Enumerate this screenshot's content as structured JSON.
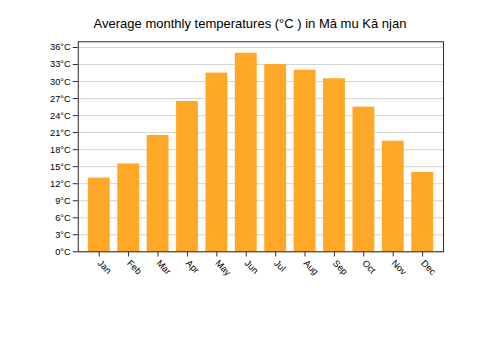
{
  "chart_data": {
    "type": "bar",
    "title": "Average monthly temperatures (°C ) in Mā mu Kā njan",
    "categories": [
      "Jan",
      "Feb",
      "Mar",
      "Apr",
      "May",
      "Jun",
      "Jul",
      "Aug",
      "Sep",
      "Oct",
      "Nov",
      "Dec"
    ],
    "values": [
      13,
      15.5,
      20.5,
      26.5,
      31.5,
      35,
      33,
      32,
      30.5,
      25.5,
      19.5,
      14
    ],
    "color": "#FFA726",
    "ylim": [
      0,
      37
    ],
    "yticks": [
      {
        "value": 0,
        "label": "0°C"
      },
      {
        "value": 3,
        "label": "3°C"
      },
      {
        "value": 6,
        "label": "6°C"
      },
      {
        "value": 9,
        "label": "9°C"
      },
      {
        "value": 12,
        "label": "12°C"
      },
      {
        "value": 15,
        "label": "15°C"
      },
      {
        "value": 18,
        "label": "18°C"
      },
      {
        "value": 21,
        "label": "21°C"
      },
      {
        "value": 24,
        "label": "24°C"
      },
      {
        "value": 27,
        "label": "27°C"
      },
      {
        "value": 30,
        "label": "30°C"
      },
      {
        "value": 33,
        "label": "33°C"
      },
      {
        "value": 36,
        "label": "36°C"
      }
    ],
    "grid": true
  }
}
